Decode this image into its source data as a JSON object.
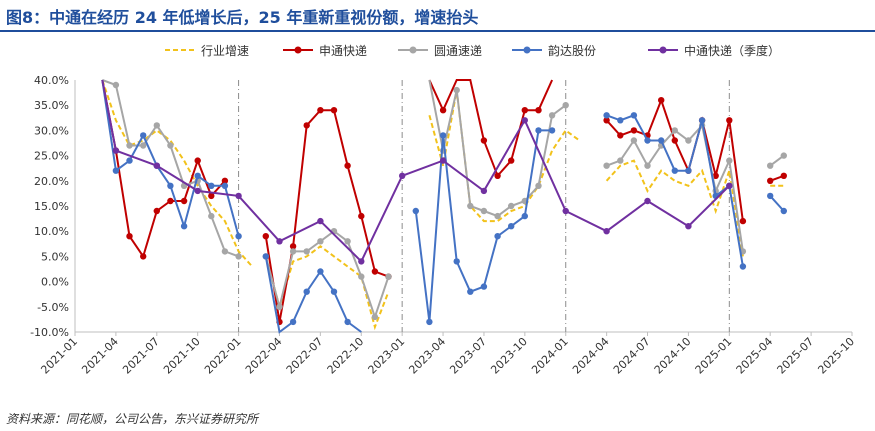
{
  "title": "图8：中通在经历 24 年低增长后，25 年重新重视份额，增速抬头",
  "source": "资料来源：同花顺，公司公告，东兴证券研究所",
  "colors": {
    "title": "#1f4e9c",
    "industry": "#f2c21b",
    "zto": "#c00000",
    "yto": "#a6a6a6",
    "yunda": "#4472c4",
    "zto_q": "#7030a0"
  },
  "chart_data": {
    "type": "line",
    "title": "图8：中通在经历 24 年低增长后，25 年重新重视份额，增速抬头",
    "xlabel": "",
    "ylabel": "",
    "ylim": [
      -0.1,
      0.4
    ],
    "y_ticks": [
      "-10.0%",
      "-5.0%",
      "0.0%",
      "5.0%",
      "10.0%",
      "15.0%",
      "20.0%",
      "25.0%",
      "30.0%",
      "35.0%",
      "40.0%"
    ],
    "x_ticks": [
      "2021-01",
      "2021-04",
      "2021-07",
      "2021-10",
      "2022-01",
      "2022-04",
      "2022-07",
      "2022-10",
      "2023-01",
      "2023-04",
      "2023-07",
      "2023-10",
      "2024-01",
      "2024-04",
      "2024-07",
      "2024-10",
      "2025-01",
      "2025-04",
      "2025-07",
      "2025-10"
    ],
    "x_start": "2021-01",
    "grid": false,
    "legend_position": "top",
    "series": [
      {
        "name": "行业增速",
        "style": "dashed",
        "points": [
          [
            "2021-03",
            0.4
          ],
          [
            "2021-04",
            0.32
          ],
          [
            "2021-05",
            0.27
          ],
          [
            "2021-06",
            0.28
          ],
          [
            "2021-07",
            0.3
          ],
          [
            "2021-08",
            0.28
          ],
          [
            "2021-09",
            0.24
          ],
          [
            "2021-10",
            0.19
          ],
          [
            "2021-11",
            0.15
          ],
          [
            "2021-12",
            0.12
          ],
          [
            "2022-01",
            0.06
          ],
          [
            "2022-02",
            0.03
          ],
          null,
          [
            "2022-03",
            0.05
          ],
          [
            "2022-04",
            -0.05
          ],
          [
            "2022-05",
            0.04
          ],
          [
            "2022-06",
            0.05
          ],
          [
            "2022-07",
            0.07
          ],
          [
            "2022-08",
            0.05
          ],
          [
            "2022-09",
            0.03
          ],
          [
            "2022-10",
            0.01
          ],
          [
            "2022-11",
            -0.09
          ],
          [
            "2022-12",
            -0.02
          ],
          null,
          [
            "2023-03",
            0.33
          ],
          [
            "2023-04",
            0.23
          ],
          [
            "2023-05",
            0.38
          ],
          [
            "2023-06",
            0.15
          ],
          [
            "2023-07",
            0.12
          ],
          [
            "2023-08",
            0.12
          ],
          [
            "2023-09",
            0.14
          ],
          [
            "2023-10",
            0.15
          ],
          [
            "2023-11",
            0.19
          ],
          [
            "2023-12",
            0.26
          ],
          [
            "2024-01",
            0.3
          ],
          [
            "2024-02",
            0.28
          ],
          null,
          [
            "2024-04",
            0.2
          ],
          [
            "2024-05",
            0.23
          ],
          [
            "2024-06",
            0.24
          ],
          [
            "2024-07",
            0.18
          ],
          [
            "2024-08",
            0.22
          ],
          [
            "2024-09",
            0.2
          ],
          [
            "2024-10",
            0.19
          ],
          [
            "2024-11",
            0.22
          ],
          [
            "2024-12",
            0.14
          ],
          [
            "2025-01",
            0.22
          ],
          [
            "2025-02",
            0.05
          ],
          null,
          [
            "2025-04",
            0.19
          ],
          [
            "2025-05",
            0.19
          ]
        ]
      },
      {
        "name": "申通快递",
        "style": "solid-marker",
        "points": [
          [
            "2021-03",
            0.4
          ],
          [
            "2021-04",
            0.26
          ],
          [
            "2021-05",
            0.09
          ],
          [
            "2021-06",
            0.05
          ],
          [
            "2021-07",
            0.14
          ],
          [
            "2021-08",
            0.16
          ],
          [
            "2021-09",
            0.16
          ],
          [
            "2021-10",
            0.24
          ],
          [
            "2021-11",
            0.17
          ],
          [
            "2021-12",
            0.2
          ],
          null,
          [
            "2022-03",
            0.09
          ],
          [
            "2022-04",
            -0.08
          ],
          [
            "2022-05",
            0.07
          ],
          [
            "2022-06",
            0.31
          ],
          [
            "2022-07",
            0.34
          ],
          [
            "2022-08",
            0.34
          ],
          [
            "2022-09",
            0.23
          ],
          [
            "2022-10",
            0.13
          ],
          [
            "2022-11",
            0.02
          ],
          [
            "2022-12",
            0.01
          ],
          null,
          [
            "2023-03",
            0.4
          ],
          [
            "2023-04",
            0.34
          ],
          [
            "2023-05",
            0.4
          ],
          [
            "2023-06",
            0.4
          ],
          [
            "2023-07",
            0.28
          ],
          [
            "2023-08",
            0.21
          ],
          [
            "2023-09",
            0.24
          ],
          [
            "2023-10",
            0.34
          ],
          [
            "2023-11",
            0.34
          ],
          [
            "2023-12",
            0.4
          ],
          null,
          [
            "2024-04",
            0.32
          ],
          [
            "2024-05",
            0.29
          ],
          [
            "2024-06",
            0.3
          ],
          [
            "2024-07",
            0.29
          ],
          [
            "2024-08",
            0.36
          ],
          [
            "2024-09",
            0.28
          ],
          [
            "2024-10",
            0.22
          ],
          [
            "2024-11",
            0.32
          ],
          [
            "2024-12",
            0.21
          ],
          [
            "2025-01",
            0.32
          ],
          [
            "2025-02",
            0.12
          ],
          null,
          [
            "2025-04",
            0.2
          ],
          [
            "2025-05",
            0.21
          ]
        ]
      },
      {
        "name": "圆通速递",
        "style": "solid-marker",
        "points": [
          [
            "2021-03",
            0.4
          ],
          [
            "2021-04",
            0.39
          ],
          [
            "2021-05",
            0.27
          ],
          [
            "2021-06",
            0.27
          ],
          [
            "2021-07",
            0.31
          ],
          [
            "2021-08",
            0.27
          ],
          [
            "2021-09",
            0.19
          ],
          [
            "2021-10",
            0.2
          ],
          [
            "2021-11",
            0.13
          ],
          [
            "2021-12",
            0.06
          ],
          [
            "2022-01",
            0.05
          ],
          null,
          [
            "2022-03",
            0.05
          ],
          [
            "2022-04",
            -0.05
          ],
          [
            "2022-05",
            0.06
          ],
          [
            "2022-06",
            0.06
          ],
          [
            "2022-07",
            0.08
          ],
          [
            "2022-08",
            0.1
          ],
          [
            "2022-09",
            0.08
          ],
          [
            "2022-10",
            0.01
          ],
          [
            "2022-11",
            -0.07
          ],
          [
            "2022-12",
            0.01
          ],
          null,
          [
            "2023-03",
            0.4
          ],
          [
            "2023-04",
            0.26
          ],
          [
            "2023-05",
            0.38
          ],
          [
            "2023-06",
            0.15
          ],
          [
            "2023-07",
            0.14
          ],
          [
            "2023-08",
            0.13
          ],
          [
            "2023-09",
            0.15
          ],
          [
            "2023-10",
            0.16
          ],
          [
            "2023-11",
            0.19
          ],
          [
            "2023-12",
            0.33
          ],
          [
            "2024-01",
            0.35
          ],
          null,
          [
            "2024-04",
            0.23
          ],
          [
            "2024-05",
            0.24
          ],
          [
            "2024-06",
            0.28
          ],
          [
            "2024-07",
            0.23
          ],
          [
            "2024-08",
            0.27
          ],
          [
            "2024-09",
            0.3
          ],
          [
            "2024-10",
            0.28
          ],
          [
            "2024-11",
            0.31
          ],
          [
            "2024-12",
            0.18
          ],
          [
            "2025-01",
            0.24
          ],
          [
            "2025-02",
            0.06
          ],
          null,
          [
            "2025-04",
            0.23
          ],
          [
            "2025-05",
            0.25
          ]
        ]
      },
      {
        "name": "韵达股份",
        "style": "solid-marker",
        "points": [
          [
            "2021-03",
            0.4
          ],
          [
            "2021-04",
            0.22
          ],
          [
            "2021-05",
            0.24
          ],
          [
            "2021-06",
            0.29
          ],
          [
            "2021-07",
            0.23
          ],
          [
            "2021-08",
            0.19
          ],
          [
            "2021-09",
            0.11
          ],
          [
            "2021-10",
            0.21
          ],
          [
            "2021-11",
            0.19
          ],
          [
            "2021-12",
            0.19
          ],
          [
            "2022-01",
            0.09
          ],
          null,
          [
            "2022-03",
            0.05
          ],
          [
            "2022-04",
            -0.1
          ],
          [
            "2022-05",
            -0.08
          ],
          [
            "2022-06",
            -0.02
          ],
          [
            "2022-07",
            0.02
          ],
          [
            "2022-08",
            -0.02
          ],
          [
            "2022-09",
            -0.08
          ],
          [
            "2022-10",
            -0.1
          ],
          null,
          [
            "2023-02",
            0.14
          ],
          [
            "2023-03",
            -0.08
          ],
          [
            "2023-04",
            0.29
          ],
          [
            "2023-05",
            0.04
          ],
          [
            "2023-06",
            -0.02
          ],
          [
            "2023-07",
            -0.01
          ],
          [
            "2023-08",
            0.09
          ],
          [
            "2023-09",
            0.11
          ],
          [
            "2023-10",
            0.13
          ],
          [
            "2023-11",
            0.3
          ],
          [
            "2023-12",
            0.3
          ],
          null,
          [
            "2024-04",
            0.33
          ],
          [
            "2024-05",
            0.32
          ],
          [
            "2024-06",
            0.33
          ],
          [
            "2024-07",
            0.28
          ],
          [
            "2024-08",
            0.28
          ],
          [
            "2024-09",
            0.22
          ],
          [
            "2024-10",
            0.22
          ],
          [
            "2024-11",
            0.32
          ],
          [
            "2024-12",
            0.17
          ],
          [
            "2025-01",
            0.19
          ],
          [
            "2025-02",
            0.03
          ],
          null,
          [
            "2025-04",
            0.17
          ],
          [
            "2025-05",
            0.14
          ]
        ]
      },
      {
        "name": "中通快递（季度）",
        "style": "solid-marker",
        "points": [
          [
            "2021-03",
            0.4
          ],
          [
            "2021-04",
            0.26
          ],
          [
            "2021-07",
            0.23
          ],
          [
            "2021-10",
            0.18
          ],
          [
            "2022-01",
            0.17
          ],
          [
            "2022-04",
            0.08
          ],
          [
            "2022-07",
            0.12
          ],
          [
            "2022-10",
            0.04
          ],
          [
            "2023-01",
            0.21
          ],
          [
            "2023-04",
            0.24
          ],
          [
            "2023-07",
            0.18
          ],
          [
            "2023-10",
            0.32
          ],
          [
            "2024-01",
            0.14
          ],
          [
            "2024-04",
            0.1
          ],
          [
            "2024-07",
            0.16
          ],
          [
            "2024-10",
            0.11
          ],
          [
            "2025-01",
            0.19
          ]
        ]
      }
    ]
  }
}
